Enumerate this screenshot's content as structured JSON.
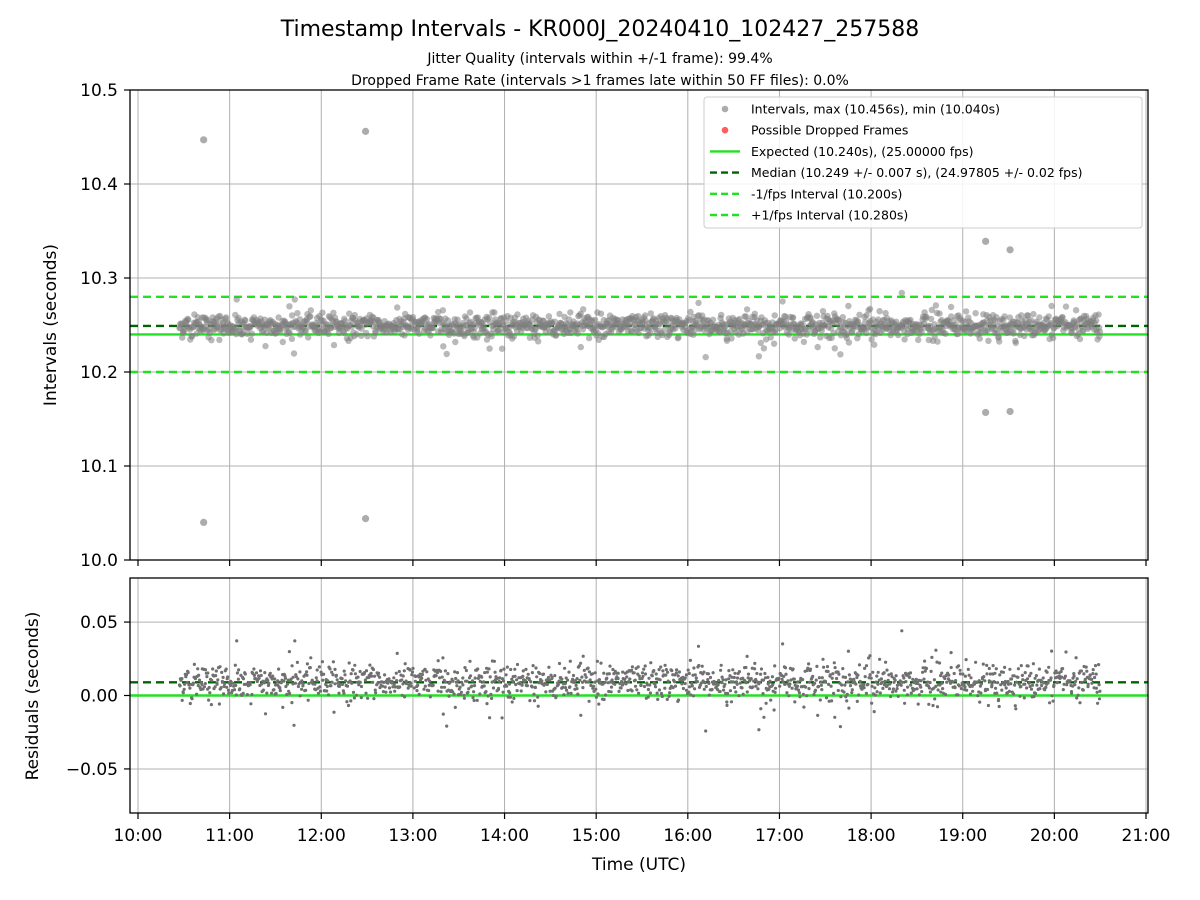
{
  "chart_data": [
    {
      "type": "scatter",
      "title": "Timestamp Intervals - KR000J_20240410_102427_257588",
      "subtitle_lines": [
        "Jitter Quality (intervals within +/-1 frame): 99.4%",
        "Dropped Frame Rate (intervals >1 frames late within 50 FF files): 0.0%"
      ],
      "ylabel": "Intervals (seconds)",
      "xlim": [
        "10:00",
        "21:00"
      ],
      "ylim": [
        10.0,
        10.5
      ],
      "yticks": [
        10.0,
        10.1,
        10.2,
        10.3,
        10.4,
        10.5
      ],
      "ytick_labels": [
        "10.0",
        "10.1",
        "10.2",
        "10.3",
        "10.4",
        "10.5"
      ],
      "grid": true,
      "legend_position": "top-right",
      "colors": {
        "intervals": "#808080",
        "dropped": "#ff4040",
        "expected": "#22e022",
        "median": "#006400",
        "band": "#22e022"
      },
      "series": [
        {
          "name": "Intervals, max (10.456s), min (10.040s)",
          "kind": "scatter",
          "time_range": [
            "10:27",
            "20:30"
          ],
          "center": 10.249,
          "spread": 0.007,
          "outliers": [
            {
              "x": "10:43",
              "y": 10.447
            },
            {
              "x": "10:43",
              "y": 10.04
            },
            {
              "x": "12:29",
              "y": 10.456
            },
            {
              "x": "12:29",
              "y": 10.044
            },
            {
              "x": "19:15",
              "y": 10.339
            },
            {
              "x": "19:15",
              "y": 10.157
            },
            {
              "x": "19:31",
              "y": 10.33
            },
            {
              "x": "19:31",
              "y": 10.158
            }
          ]
        },
        {
          "name": "Possible Dropped Frames",
          "kind": "scatter",
          "points": []
        },
        {
          "name": "Expected (10.240s), (25.00000 fps)",
          "kind": "hline",
          "y": 10.24,
          "style": "solid"
        },
        {
          "name": "Median (10.249 +/- 0.007 s), (24.97805 +/- 0.02 fps)",
          "kind": "hline",
          "y": 10.249,
          "style": "dashed"
        },
        {
          "name": "-1/fps Interval (10.200s)",
          "kind": "hline",
          "y": 10.2,
          "style": "dashed"
        },
        {
          "name": "+1/fps Interval (10.280s)",
          "kind": "hline",
          "y": 10.28,
          "style": "dashed"
        }
      ]
    },
    {
      "type": "scatter",
      "xlabel": "Time (UTC)",
      "ylabel": "Residuals (seconds)",
      "xlim": [
        "10:00",
        "21:00"
      ],
      "xticks": [
        "10:00",
        "11:00",
        "12:00",
        "13:00",
        "14:00",
        "15:00",
        "16:00",
        "17:00",
        "18:00",
        "19:00",
        "20:00",
        "21:00"
      ],
      "ylim": [
        -0.08,
        0.08
      ],
      "yticks": [
        0.05,
        0.0,
        -0.05
      ],
      "ytick_labels": [
        "0.05",
        "0.00",
        "−0.05"
      ],
      "grid": true,
      "series": [
        {
          "kind": "scatter",
          "time_range": [
            "10:27",
            "20:30"
          ],
          "center": 0.009,
          "spread": 0.007
        },
        {
          "kind": "hline",
          "y": 0.0,
          "style": "solid"
        },
        {
          "kind": "hline",
          "y": 0.009,
          "style": "dashed"
        }
      ]
    }
  ]
}
